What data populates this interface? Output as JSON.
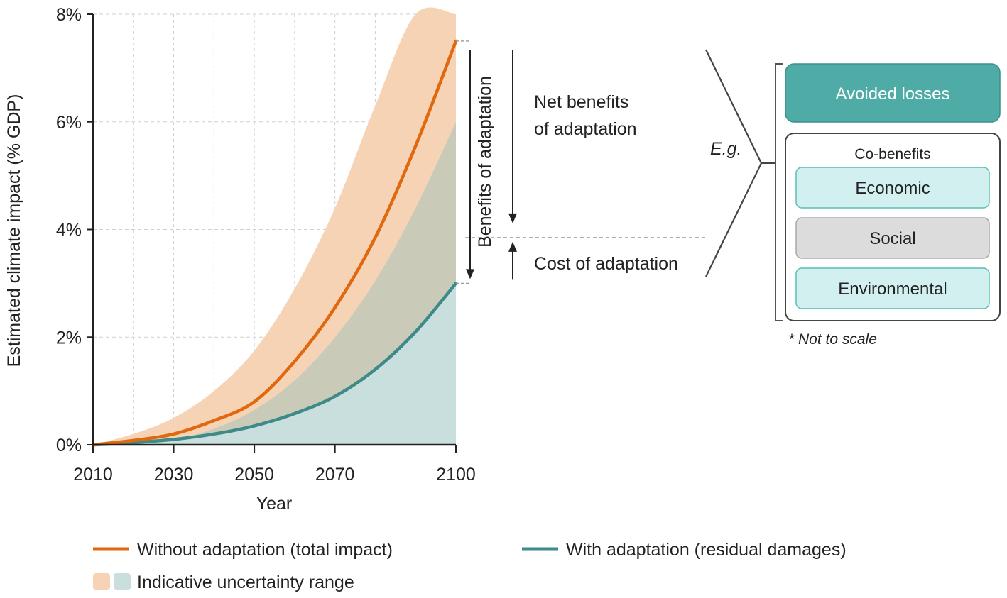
{
  "chart_data": {
    "type": "area",
    "xlabel": "Year",
    "ylabel": "Estimated climate impact (% GDP)",
    "xlim": [
      2010,
      2100
    ],
    "ylim": [
      0,
      8
    ],
    "x_ticks": [
      "2010",
      "2030",
      "2050",
      "2070",
      "2100"
    ],
    "y_ticks": [
      "0%",
      "2%",
      "4%",
      "6%",
      "8%"
    ],
    "grid": true,
    "x": [
      2010,
      2020,
      2030,
      2040,
      2050,
      2060,
      2070,
      2080,
      2090,
      2100
    ],
    "series": [
      {
        "name": "Without adaptation (total impact)",
        "color": "#E0690F",
        "values": [
          0.0,
          0.08,
          0.2,
          0.45,
          0.8,
          1.55,
          2.55,
          3.85,
          5.55,
          7.5
        ],
        "band_upper": [
          0.0,
          0.2,
          0.5,
          1.0,
          1.75,
          2.9,
          4.4,
          6.3,
          8.0,
          8.0
        ],
        "band_lower": [
          0.0,
          0.03,
          0.1,
          0.3,
          0.65,
          1.2,
          2.0,
          3.05,
          4.4,
          6.0
        ]
      },
      {
        "name": "With adaptation (residual damages)",
        "color": "#3E8A88",
        "values": [
          0.0,
          0.04,
          0.1,
          0.2,
          0.35,
          0.58,
          0.9,
          1.4,
          2.1,
          3.0
        ]
      }
    ],
    "band_colors": {
      "orange": "#F7D3B5",
      "teal": "#C8DFDD",
      "overlap": "#C9CAB8"
    },
    "annotations": {
      "benefits": "Benefits of adaptation",
      "net_benefits_line1": "Net benefits",
      "net_benefits_line2": "of adaptation",
      "cost": "Cost of adaptation",
      "eg": "E.g.",
      "not_to_scale": "* Not to scale"
    },
    "benefit_boxes": {
      "avoided_losses": "Avoided losses",
      "co_benefits_title": "Co-benefits",
      "co_benefits": [
        "Economic",
        "Social",
        "Environmental"
      ],
      "avoided_color": "#4FABA6",
      "economic_color": "#D2F0F0",
      "social_color": "#DCDCDC",
      "environmental_color": "#D2F0F0"
    },
    "legend": {
      "without": "Without adaptation (total impact)",
      "with": "With adaptation (residual damages)",
      "range": "Indicative uncertainty range"
    },
    "annotation_levels": {
      "top_percent": 7.5,
      "divider_percent": 3.85,
      "bottom_percent": 3.0
    }
  }
}
